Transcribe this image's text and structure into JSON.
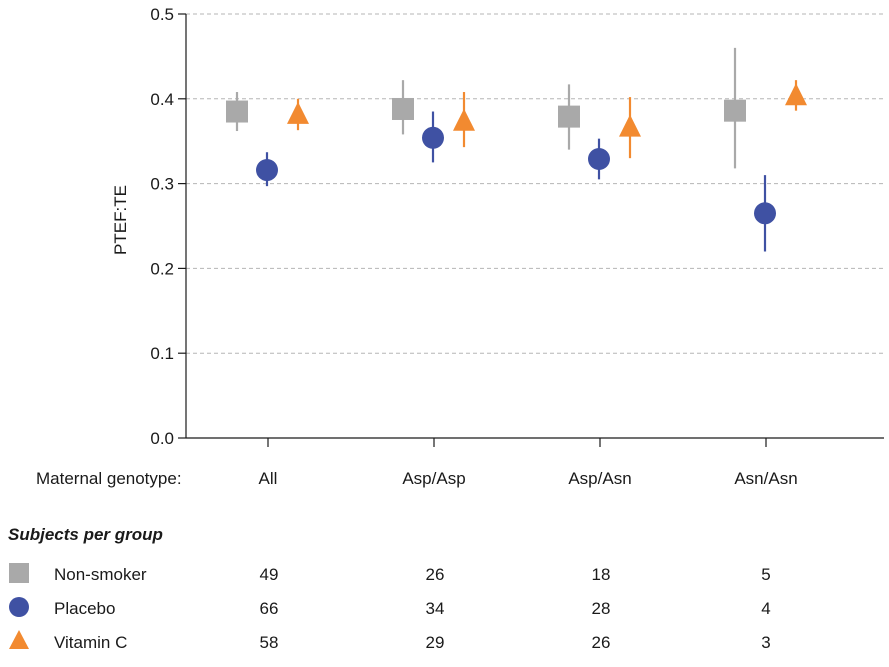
{
  "chart_data": {
    "type": "scatter",
    "ylabel": "PTEF:TE",
    "ylim": [
      0,
      0.5
    ],
    "yticks": [
      "0.0",
      "0.1",
      "0.2",
      "0.3",
      "0.4",
      "0.5"
    ],
    "ytick_values": [
      0,
      0.1,
      0.2,
      0.3,
      0.4,
      0.5
    ],
    "grid": "horizontal dashed",
    "xaxis_title": "Maternal genotype:",
    "categories": [
      "All",
      "Asp/Asp",
      "Asp/Asn",
      "Asn/Asn"
    ],
    "series": [
      {
        "name": "Non-smoker",
        "marker": "square",
        "color": "#a9a9a9",
        "values": [
          0.385,
          0.388,
          0.379,
          0.386
        ],
        "err_low": [
          0.362,
          0.358,
          0.34,
          0.318
        ],
        "err_high": [
          0.408,
          0.422,
          0.417,
          0.46
        ]
      },
      {
        "name": "Placebo",
        "marker": "circle",
        "color": "#3f51a3",
        "values": [
          0.316,
          0.354,
          0.329,
          0.265
        ],
        "err_low": [
          0.297,
          0.325,
          0.305,
          0.22
        ],
        "err_high": [
          0.337,
          0.385,
          0.353,
          0.31
        ]
      },
      {
        "name": "Vitamin C",
        "marker": "triangle",
        "color": "#f28a30",
        "values": [
          0.381,
          0.373,
          0.366,
          0.403
        ],
        "err_low": [
          0.363,
          0.343,
          0.33,
          0.386
        ],
        "err_high": [
          0.4,
          0.408,
          0.402,
          0.422
        ]
      }
    ],
    "table": {
      "title": "Subjects per group",
      "rows": [
        {
          "label": "Non-smoker",
          "counts": [
            "49",
            "26",
            "18",
            "5"
          ]
        },
        {
          "label": "Placebo",
          "counts": [
            "66",
            "34",
            "28",
            "4"
          ]
        },
        {
          "label": "Vitamin C",
          "counts": [
            "58",
            "29",
            "26",
            "3"
          ]
        }
      ]
    }
  }
}
